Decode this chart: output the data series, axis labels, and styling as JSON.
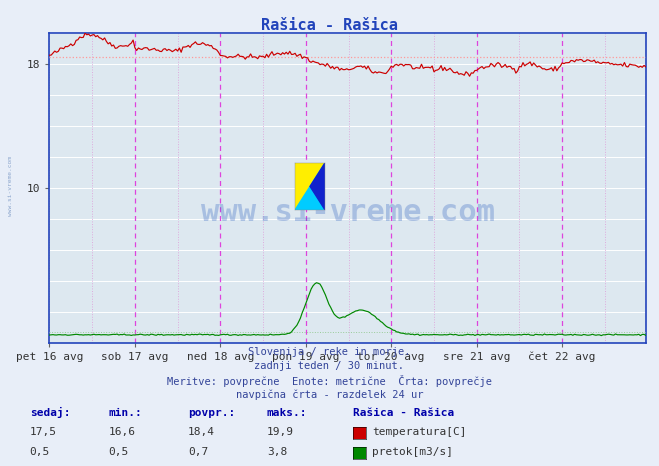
{
  "title": "Rašica - Rašica",
  "title_color": "#2244bb",
  "bg_color": "#e8eef8",
  "plot_bg_color": "#dde8f0",
  "grid_color": "#ffffff",
  "ylim": [
    0,
    20
  ],
  "temp_color": "#cc0000",
  "flow_color": "#008800",
  "avg_temp_color": "#ff9999",
  "avg_flow_color": "#99cc99",
  "vline_day_color": "#dd44dd",
  "vline_half_color": "#ddaadd",
  "border_color": "#2244bb",
  "x_labels": [
    "pet 16 avg",
    "sob 17 avg",
    "ned 18 avg",
    "pon 19 avg",
    "tor 20 avg",
    "sre 21 avg",
    "čet 22 avg"
  ],
  "n_points": 336,
  "temp_avg": 18.4,
  "flow_avg": 0.7,
  "temp_min": 16.6,
  "temp_max": 19.9,
  "flow_min": 0.5,
  "flow_max": 3.8,
  "temp_current": 17.5,
  "flow_current": 0.5,
  "footer_lines": [
    "Slovenija / reke in morje.",
    "zadnji teden / 30 minut.",
    "Meritve: povprečne  Enote: metrične  Črta: povprečje",
    "navpična črta - razdelek 24 ur"
  ],
  "legend_title": "Rašica - Rašica",
  "legend_items": [
    "temperatura[C]",
    "pretok[m3/s]"
  ],
  "legend_colors": [
    "#cc0000",
    "#008800"
  ],
  "table_headers": [
    "sedaj:",
    "min.:",
    "povpr.:",
    "maks.:"
  ],
  "table_row1": [
    "17,5",
    "16,6",
    "18,4",
    "19,9"
  ],
  "table_row2": [
    "0,5",
    "0,5",
    "0,7",
    "3,8"
  ],
  "ytick_labels": [
    "18",
    "10"
  ],
  "ytick_values": [
    18,
    10
  ]
}
